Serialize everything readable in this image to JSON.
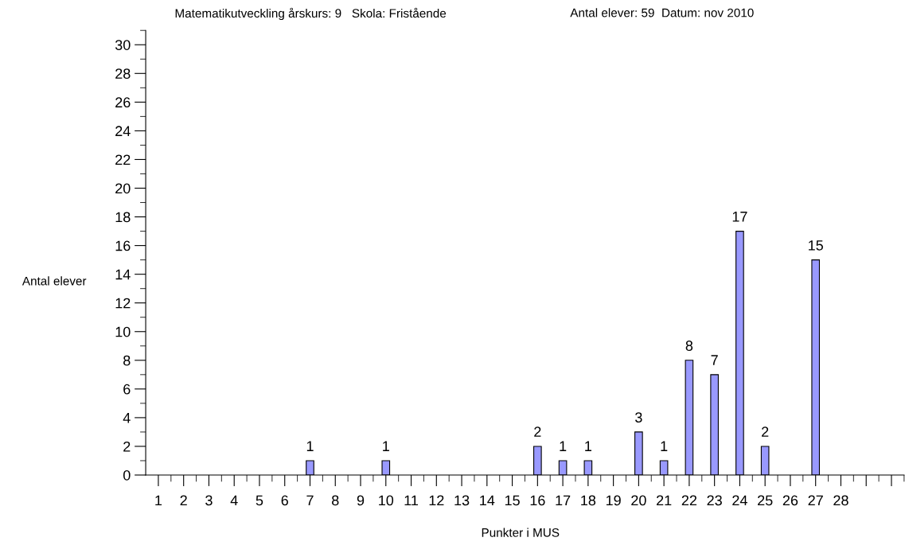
{
  "chart_data": {
    "type": "bar",
    "title": "Matematikutveckling årskurs: 9   Skola: Fristående",
    "subtitle": "Antal elever: 59  Datum: nov 2010",
    "xlabel": "Punkter i MUS",
    "ylabel": "Antal elever",
    "x": [
      7,
      10,
      16,
      17,
      18,
      20,
      21,
      22,
      23,
      24,
      25,
      27
    ],
    "values": [
      1,
      1,
      2,
      1,
      1,
      3,
      1,
      8,
      7,
      17,
      2,
      15
    ],
    "color": "#9999ff",
    "data_labels": true,
    "grid": false,
    "legend": false,
    "xlim": [
      0.5,
      30.5
    ],
    "xticks": [
      1,
      2,
      3,
      4,
      5,
      6,
      7,
      8,
      9,
      10,
      11,
      12,
      13,
      14,
      15,
      16,
      17,
      18,
      19,
      20,
      21,
      22,
      23,
      24,
      25,
      26,
      27,
      28,
      {
        "value": 29,
        "label": null
      },
      {
        "value": 30,
        "label": null
      },
      {
        "value": 1.5,
        "label": null
      },
      {
        "value": 2.5,
        "label": null
      },
      {
        "value": 3.5,
        "label": null
      },
      {
        "value": 4.5,
        "label": null
      },
      {
        "value": 5.5,
        "label": null
      },
      {
        "value": 6.5,
        "label": null
      },
      {
        "value": 7.5,
        "label": null
      },
      {
        "value": 8.5,
        "label": null
      },
      {
        "value": 9.5,
        "label": null
      },
      {
        "value": 10.5,
        "label": null
      },
      {
        "value": 11.5,
        "label": null
      },
      {
        "value": 12.5,
        "label": null
      },
      {
        "value": 13.5,
        "label": null
      },
      {
        "value": 14.5,
        "label": null
      },
      {
        "value": 15.5,
        "label": null
      },
      {
        "value": 16.5,
        "label": null
      },
      {
        "value": 17.5,
        "label": null
      },
      {
        "value": 18.5,
        "label": null
      },
      {
        "value": 19.5,
        "label": null
      },
      {
        "value": 20.5,
        "label": null
      },
      {
        "value": 21.5,
        "label": null
      },
      {
        "value": 22.5,
        "label": null
      },
      {
        "value": 23.5,
        "label": null
      },
      {
        "value": 24.5,
        "label": null
      },
      {
        "value": 25.5,
        "label": null
      },
      {
        "value": 26.5,
        "label": null
      },
      {
        "value": 27.5,
        "label": null
      },
      {
        "value": 28.5,
        "label": null
      },
      {
        "value": 29.5,
        "label": null
      },
      {
        "value": 30.5,
        "label": null
      }
    ],
    "ylim": [
      0,
      31
    ],
    "yticks": [
      0,
      2,
      4,
      6,
      8,
      10,
      12,
      14,
      16,
      18,
      20,
      22,
      24,
      26,
      28,
      30,
      {
        "value": 1,
        "label": null
      },
      {
        "value": 3,
        "label": null
      },
      {
        "value": 5,
        "label": null
      },
      {
        "value": 7,
        "label": null
      },
      {
        "value": 9,
        "label": null
      },
      {
        "value": 11,
        "label": null
      },
      {
        "value": 13,
        "label": null
      },
      {
        "value": 15,
        "label": null
      },
      {
        "value": 17,
        "label": null
      },
      {
        "value": 19,
        "label": null
      },
      {
        "value": 21,
        "label": null
      },
      {
        "value": 23,
        "label": null
      },
      {
        "value": 25,
        "label": null
      },
      {
        "value": 27,
        "label": null
      },
      {
        "value": 29,
        "label": null
      },
      {
        "value": 31,
        "label": null
      }
    ]
  }
}
